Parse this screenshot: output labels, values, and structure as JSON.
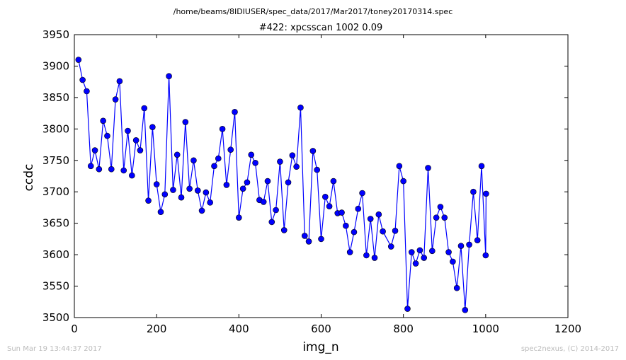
{
  "chart_data": {
    "type": "line",
    "suptitle": "/home/beams/8IDIUSER/spec_data/2017/Mar2017/toney20170314.spec",
    "title": "#422: xpcsscan 1002 0.09",
    "xlabel": "img_n",
    "ylabel": "ccdc",
    "xlim": [
      0,
      1200
    ],
    "ylim": [
      3500,
      3950
    ],
    "xticks": [
      "0",
      "200",
      "400",
      "600",
      "800",
      "1000",
      "1200"
    ],
    "yticks": [
      "3500",
      "3550",
      "3600",
      "3650",
      "3700",
      "3750",
      "3800",
      "3850",
      "3900",
      "3950"
    ],
    "grid": false,
    "line_color": "#0000ff",
    "marker": "circle",
    "series": [
      {
        "x": [
          10,
          20,
          30,
          40,
          50,
          60,
          70,
          80,
          90,
          100,
          110,
          120,
          130,
          140,
          150,
          160,
          170,
          180,
          190,
          200,
          210,
          220,
          230,
          240,
          250,
          260,
          270,
          280,
          290,
          300,
          310,
          320,
          330,
          340,
          350,
          360,
          370,
          380,
          390,
          400,
          410,
          420,
          430,
          440,
          450,
          460,
          470,
          480,
          490,
          500,
          510,
          520,
          530,
          540,
          550,
          560,
          570,
          580,
          590,
          600,
          610,
          620,
          630,
          640,
          650,
          660,
          670,
          680,
          690,
          700,
          710,
          720,
          730,
          740,
          750,
          770,
          780,
          790,
          800,
          810,
          820,
          830,
          840,
          850,
          860,
          870,
          880,
          890,
          900,
          910,
          920,
          930,
          940,
          950,
          960,
          970,
          980,
          990,
          1000,
          1001
        ],
        "y": [
          3910,
          3878,
          3860,
          3741,
          3766,
          3736,
          3813,
          3789,
          3736,
          3847,
          3876,
          3734,
          3797,
          3726,
          3782,
          3766,
          3833,
          3686,
          3803,
          3712,
          3668,
          3696,
          3884,
          3703,
          3759,
          3691,
          3811,
          3705,
          3750,
          3702,
          3670,
          3699,
          3683,
          3741,
          3753,
          3800,
          3711,
          3767,
          3827,
          3659,
          3705,
          3715,
          3759,
          3746,
          3687,
          3684,
          3717,
          3652,
          3671,
          3748,
          3639,
          3715,
          3758,
          3740,
          3834,
          3630,
          3621,
          3765,
          3735,
          3625,
          3692,
          3677,
          3717,
          3666,
          3667,
          3646,
          3604,
          3636,
          3673,
          3698,
          3599,
          3657,
          3595,
          3664,
          3637,
          3613,
          3638,
          3741,
          3717,
          3514,
          3604,
          3586,
          3607,
          3595,
          3738,
          3606,
          3659,
          3676,
          3659,
          3604,
          3589,
          3547,
          3614,
          3512,
          3616,
          3700,
          3623,
          3741,
          3599,
          3697
        ]
      }
    ]
  },
  "footer": {
    "left": "Sun Mar 19 13:44:37 2017",
    "right": "spec2nexus, (C) 2014-2017"
  }
}
